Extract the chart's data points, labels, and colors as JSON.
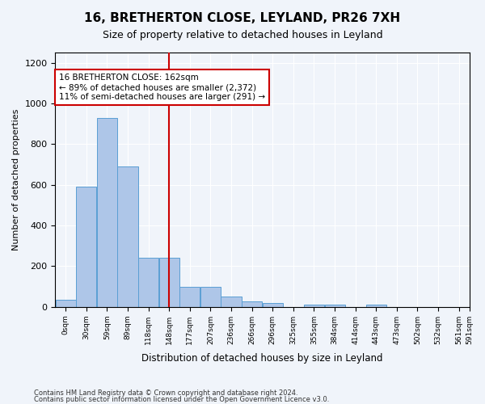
{
  "title": "16, BRETHERTON CLOSE, LEYLAND, PR26 7XH",
  "subtitle": "Size of property relative to detached houses in Leyland",
  "xlabel": "Distribution of detached houses by size in Leyland",
  "ylabel": "Number of detached properties",
  "bar_color": "#aec6e8",
  "bar_edge_color": "#5a9fd4",
  "bin_edges": [
    0,
    29.5,
    59,
    88.5,
    118,
    147.5,
    177,
    206.5,
    236,
    265.5,
    295,
    324.5,
    354,
    383.5,
    413,
    442.5,
    472,
    501.5,
    531,
    560.5,
    590
  ],
  "bin_labels": [
    "0sqm",
    "30sqm",
    "59sqm",
    "89sqm",
    "118sqm",
    "148sqm",
    "177sqm",
    "207sqm",
    "236sqm",
    "266sqm",
    "296sqm",
    "325sqm",
    "355sqm",
    "384sqm",
    "414sqm",
    "443sqm",
    "473sqm",
    "502sqm",
    "532sqm",
    "561sqm"
  ],
  "bar_heights": [
    35,
    590,
    930,
    690,
    240,
    240,
    100,
    100,
    50,
    25,
    20,
    0,
    10,
    10,
    0,
    10,
    0,
    0,
    0,
    0
  ],
  "property_size": 162,
  "vline_color": "#cc0000",
  "ylim": [
    0,
    1250
  ],
  "yticks": [
    0,
    200,
    400,
    600,
    800,
    1000,
    1200
  ],
  "annotation_title": "16 BRETHERTON CLOSE: 162sqm",
  "annotation_line1": "← 89% of detached houses are smaller (2,372)",
  "annotation_line2": "11% of semi-detached houses are larger (291) →",
  "annotation_box_color": "#ffffff",
  "annotation_border_color": "#cc0000",
  "footer1": "Contains HM Land Registry data © Crown copyright and database right 2024.",
  "footer2": "Contains public sector information licensed under the Open Government Licence v3.0.",
  "background_color": "#f0f4fa",
  "grid_color": "#ffffff"
}
